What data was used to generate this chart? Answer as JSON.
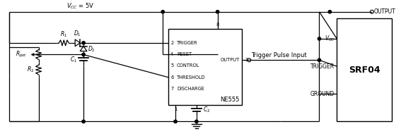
{
  "background_color": "#ffffff",
  "vcc_label": "$V_{CC}$ = 5V",
  "ne555_label": "NE555",
  "srf04_label": "SRF04",
  "trigger_pulse_label": "Trigger Pulse Input",
  "output_label": "OUTPUT",
  "vcc_pin_label": "$V_{CC}$",
  "trigger_pin_label": "TRIGGER",
  "ground_pin_label": "GROUND",
  "r1_label": "$R_1$",
  "r2_label": "$R_2$",
  "rpot_label": "$R_{pot}$",
  "d1_label": "$D_1$",
  "d2_label": "$D_2$",
  "c1_label": "$C_1$",
  "c2_label": "$C_2$",
  "pin2_label": "2",
  "pin3_label": "3",
  "pin4_label": "4",
  "pin5_label": "5",
  "pin6_label": "6",
  "pin7_label": "7",
  "pin8_label": "8",
  "pin1_label": "1",
  "trigger_text": "TRIGGER",
  "reset_text": "RESET",
  "control_text": "CONTROL",
  "threshold_text": "THRESHOLD",
  "discharge_text": "DISCHARGE",
  "output_text": "OUTPUT"
}
